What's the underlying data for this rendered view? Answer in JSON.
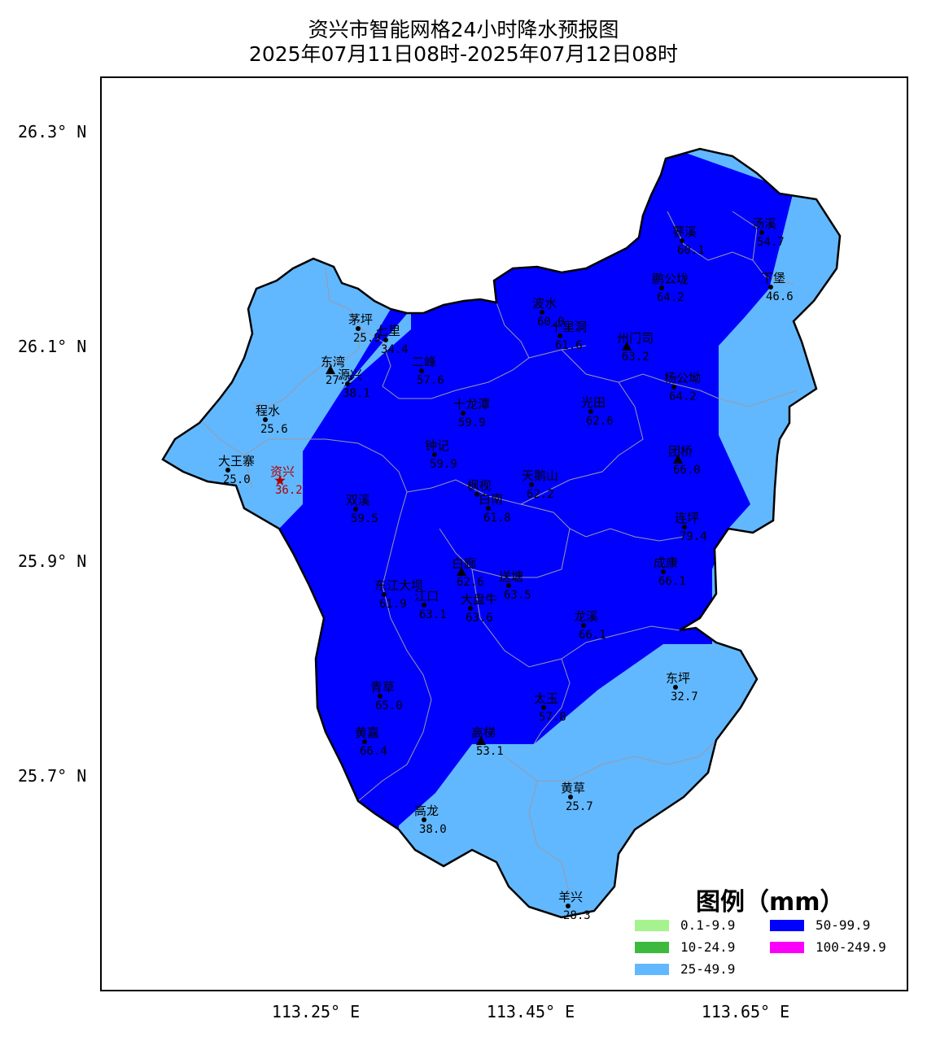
{
  "title": {
    "line1": "资兴市智能网格24小时降水预报图",
    "line2": "2025年07月11日08时-2025年07月12日08时"
  },
  "lat_labels": [
    "26.3° N",
    "26.1° N",
    "25.9° N",
    "25.7° N"
  ],
  "lon_labels": [
    "113.25° E",
    "113.45° E",
    "113.65° E"
  ],
  "legend": {
    "title": "图例（mm）",
    "items": [
      {
        "label": "0.1-9.9",
        "color": "#a6f28f"
      },
      {
        "label": "10-24.9",
        "color": "#3dba3d"
      },
      {
        "label": "25-49.9",
        "color": "#61b8ff"
      },
      {
        "label": "50-99.9",
        "color": "#0000ff"
      },
      {
        "label": "100-249.9",
        "color": "#fa00fa"
      }
    ]
  },
  "stations": [
    {
      "name": "汤溪",
      "value": "54.7",
      "marker": "dot"
    },
    {
      "name": "蓼溪",
      "value": "60.1",
      "marker": "dot"
    },
    {
      "name": "鹏公垅",
      "value": "64.2",
      "marker": "dot"
    },
    {
      "name": "下堡",
      "value": "46.6",
      "marker": "dot"
    },
    {
      "name": "波水",
      "value": "60.0",
      "marker": "dot"
    },
    {
      "name": "十里洞",
      "value": "61.6",
      "marker": "dot"
    },
    {
      "name": "州门司",
      "value": "63.2",
      "marker": "triangle"
    },
    {
      "name": "茅坪",
      "value": "25.9",
      "marker": "dot"
    },
    {
      "name": "七里",
      "value": "34.4",
      "marker": "dot"
    },
    {
      "name": "东湾",
      "value": "27.2",
      "marker": "triangle"
    },
    {
      "name": "源兴",
      "value": "38.1",
      "marker": "dot"
    },
    {
      "name": "二峰",
      "value": "57.6",
      "marker": "dot"
    },
    {
      "name": "杨公坳",
      "value": "64.2",
      "marker": "dot"
    },
    {
      "name": "程水",
      "value": "25.6",
      "marker": "dot"
    },
    {
      "name": "十龙潭",
      "value": "59.9",
      "marker": "dot"
    },
    {
      "name": "光田",
      "value": "62.6",
      "marker": "dot"
    },
    {
      "name": "钟记",
      "value": "59.9",
      "marker": "dot"
    },
    {
      "name": "团桥",
      "value": "66.0",
      "marker": "triangle"
    },
    {
      "name": "大王寨",
      "value": "25.0",
      "marker": "dot"
    },
    {
      "name": "资兴",
      "value": "36.2",
      "marker": "star"
    },
    {
      "name": "天鹅山",
      "value": "62.2",
      "marker": "dot"
    },
    {
      "name": "枫枧",
      "value": "",
      "marker": "dot"
    },
    {
      "name": "白南",
      "value": "61.8",
      "marker": "dot"
    },
    {
      "name": "双溪",
      "value": "59.5",
      "marker": "dot"
    },
    {
      "name": "连坪",
      "value": "79.4",
      "marker": "dot"
    },
    {
      "name": "白廊",
      "value": "62.6",
      "marker": "triangle"
    },
    {
      "name": "成康",
      "value": "66.1",
      "marker": "dot"
    },
    {
      "name": "东江大坝",
      "value": "61.9",
      "marker": "dot"
    },
    {
      "name": "送塘",
      "value": "63.5",
      "marker": "dot"
    },
    {
      "name": "江口",
      "value": "63.1",
      "marker": "dot"
    },
    {
      "name": "大盘牛",
      "value": "63.6",
      "marker": "dot"
    },
    {
      "name": "龙溪",
      "value": "66.1",
      "marker": "dot"
    },
    {
      "name": "东坪",
      "value": "32.7",
      "marker": "dot"
    },
    {
      "name": "青草",
      "value": "65.0",
      "marker": "dot"
    },
    {
      "name": "太玉",
      "value": "57.8",
      "marker": "dot"
    },
    {
      "name": "黄嘉",
      "value": "66.4",
      "marker": "dot"
    },
    {
      "name": "高梯",
      "value": "53.1",
      "marker": "triangle"
    },
    {
      "name": "黄草",
      "value": "25.7",
      "marker": "dot"
    },
    {
      "name": "高龙",
      "value": "38.0",
      "marker": "dot"
    },
    {
      "name": "羊兴",
      "value": "28.3",
      "marker": "dot"
    }
  ]
}
